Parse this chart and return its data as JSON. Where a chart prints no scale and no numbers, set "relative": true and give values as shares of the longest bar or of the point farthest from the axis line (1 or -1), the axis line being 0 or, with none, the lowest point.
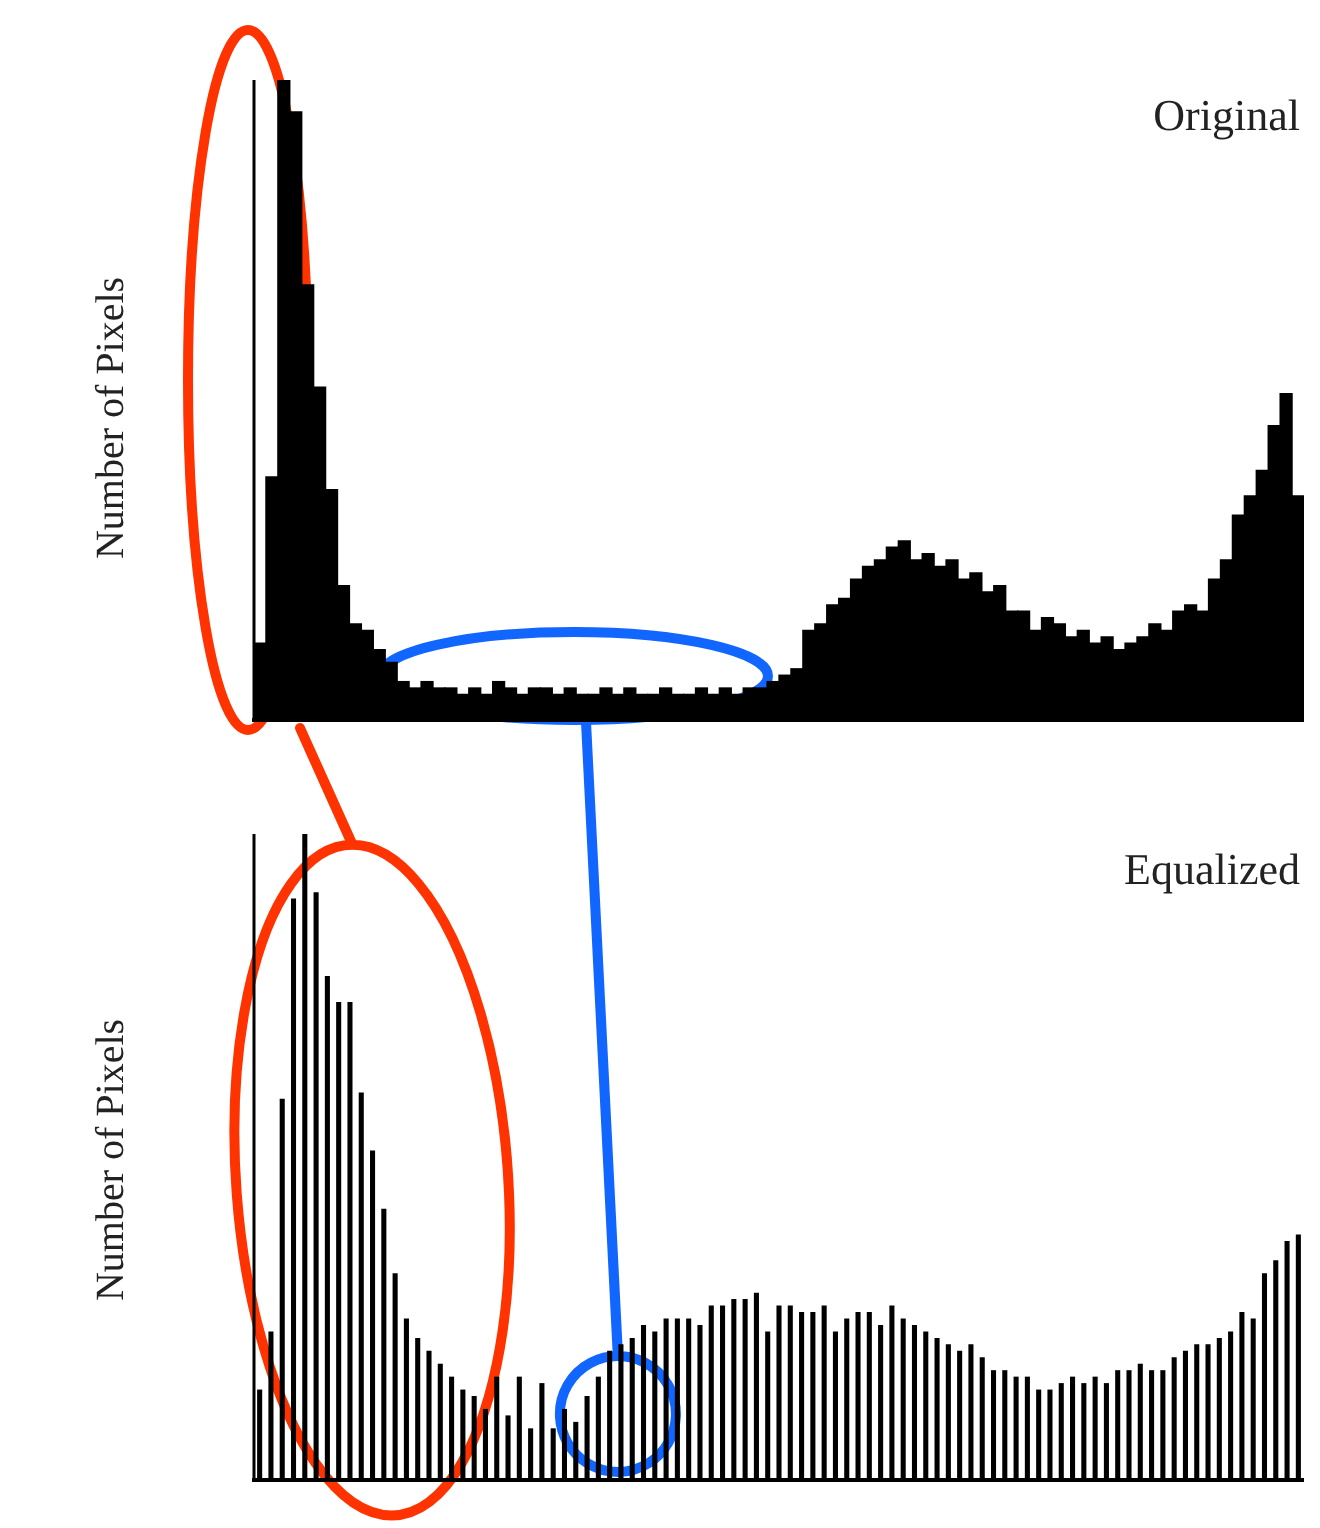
{
  "chart_data": [
    {
      "type": "bar",
      "title": "Original",
      "ylabel": "Number of Pixels",
      "relative": true,
      "color": "#000000",
      "categories": [
        null,
        null,
        null,
        null,
        null,
        null,
        null,
        null,
        null,
        null,
        null,
        null,
        null,
        null,
        null,
        null,
        null,
        null,
        null,
        null,
        null,
        null,
        null,
        null,
        null,
        null,
        null,
        null,
        null,
        null,
        null,
        null,
        null,
        null,
        null,
        null,
        null,
        null,
        null,
        null,
        null,
        null,
        null,
        null,
        null,
        null,
        null,
        null,
        null,
        null,
        null,
        null,
        null,
        null,
        null,
        null,
        null,
        null,
        null,
        null,
        null,
        null,
        null,
        null,
        null,
        null,
        null,
        null,
        null,
        null,
        null,
        null,
        null,
        null,
        null,
        null,
        null,
        null,
        null,
        null,
        null,
        null,
        null,
        null,
        null,
        null,
        null,
        null
      ],
      "values": [
        0.12,
        0.38,
        1.0,
        0.95,
        0.68,
        0.52,
        0.36,
        0.21,
        0.15,
        0.14,
        0.11,
        0.09,
        0.06,
        0.05,
        0.06,
        0.05,
        0.05,
        0.04,
        0.05,
        0.04,
        0.06,
        0.05,
        0.04,
        0.05,
        0.05,
        0.04,
        0.05,
        0.04,
        0.04,
        0.05,
        0.04,
        0.05,
        0.04,
        0.04,
        0.05,
        0.04,
        0.04,
        0.05,
        0.04,
        0.05,
        0.04,
        0.05,
        0.05,
        0.06,
        0.07,
        0.08,
        0.14,
        0.15,
        0.18,
        0.19,
        0.22,
        0.24,
        0.25,
        0.27,
        0.28,
        0.25,
        0.26,
        0.24,
        0.25,
        0.22,
        0.23,
        0.2,
        0.21,
        0.17,
        0.17,
        0.14,
        0.16,
        0.15,
        0.13,
        0.14,
        0.12,
        0.13,
        0.11,
        0.12,
        0.13,
        0.15,
        0.14,
        0.17,
        0.18,
        0.17,
        0.22,
        0.25,
        0.32,
        0.35,
        0.39,
        0.46,
        0.51,
        0.35
      ]
    },
    {
      "type": "bar",
      "title": "Equalized",
      "ylabel": "Number of Pixels",
      "relative": true,
      "color": "#000000",
      "categories": [
        null,
        null,
        null,
        null,
        null,
        null,
        null,
        null,
        null,
        null,
        null,
        null,
        null,
        null,
        null,
        null,
        null,
        null,
        null,
        null,
        null,
        null,
        null,
        null,
        null,
        null,
        null,
        null,
        null,
        null,
        null,
        null,
        null,
        null,
        null,
        null,
        null,
        null,
        null,
        null,
        null,
        null,
        null,
        null,
        null,
        null,
        null,
        null,
        null,
        null,
        null,
        null,
        null,
        null,
        null,
        null,
        null,
        null,
        null,
        null,
        null,
        null,
        null,
        null,
        null,
        null,
        null,
        null,
        null,
        null,
        null,
        null,
        null,
        null,
        null,
        null,
        null,
        null,
        null,
        null,
        null,
        null,
        null,
        null,
        null,
        null,
        null,
        null,
        null,
        null,
        null,
        null,
        null
      ],
      "values": [
        0.14,
        0.23,
        0.59,
        0.9,
        1.0,
        0.91,
        0.78,
        0.74,
        0.74,
        0.6,
        0.51,
        0.42,
        0.32,
        0.25,
        0.22,
        0.2,
        0.18,
        0.16,
        0.14,
        0.13,
        0.11,
        0.16,
        0.1,
        0.16,
        0.08,
        0.15,
        0.08,
        0.11,
        0.09,
        0.13,
        0.16,
        0.2,
        0.21,
        0.22,
        0.24,
        0.23,
        0.25,
        0.25,
        0.25,
        0.24,
        0.27,
        0.27,
        0.28,
        0.28,
        0.29,
        0.23,
        0.27,
        0.27,
        0.26,
        0.26,
        0.27,
        0.23,
        0.25,
        0.26,
        0.26,
        0.24,
        0.27,
        0.25,
        0.24,
        0.23,
        0.22,
        0.21,
        0.2,
        0.21,
        0.19,
        0.17,
        0.17,
        0.16,
        0.16,
        0.14,
        0.14,
        0.15,
        0.16,
        0.15,
        0.16,
        0.15,
        0.17,
        0.17,
        0.18,
        0.17,
        0.17,
        0.19,
        0.2,
        0.21,
        0.21,
        0.22,
        0.23,
        0.26,
        0.25,
        0.32,
        0.34,
        0.37,
        0.38
      ]
    }
  ]
}
